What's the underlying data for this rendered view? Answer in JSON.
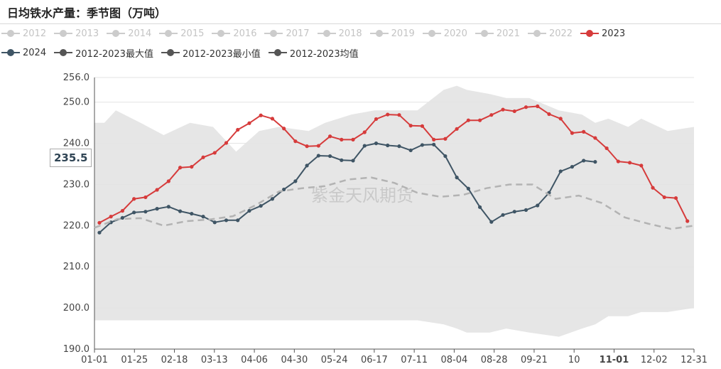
{
  "title": "日均铁水产量：季节图（万吨）",
  "watermark": "紫金天风期货",
  "pointer_label": "235.5",
  "legend": [
    {
      "name": "2012",
      "color": "#cccccc",
      "row": 1
    },
    {
      "name": "2013",
      "color": "#cccccc",
      "row": 1
    },
    {
      "name": "2014",
      "color": "#cccccc",
      "row": 1
    },
    {
      "name": "2015",
      "color": "#cccccc",
      "row": 1
    },
    {
      "name": "2016",
      "color": "#cccccc",
      "row": 1
    },
    {
      "name": "2017",
      "color": "#cccccc",
      "row": 1
    },
    {
      "name": "2018",
      "color": "#cccccc",
      "row": 1
    },
    {
      "name": "2019",
      "color": "#cccccc",
      "row": 1
    },
    {
      "name": "2020",
      "color": "#cccccc",
      "row": 1
    },
    {
      "name": "2021",
      "color": "#cccccc",
      "row": 1
    },
    {
      "name": "2022",
      "color": "#cccccc",
      "row": 1
    },
    {
      "name": "2023",
      "color": "#d63b3b",
      "row": 1
    },
    {
      "name": "2024",
      "color": "#3f5565",
      "row": 2
    },
    {
      "name": "2012-2023最大值",
      "color": "#555555",
      "row": 2
    },
    {
      "name": "2012-2023最小值",
      "color": "#555555",
      "row": 2
    },
    {
      "name": "2012-2023均值",
      "color": "#555555",
      "row": 2
    }
  ],
  "chart_data": {
    "type": "line",
    "xlabel": "",
    "ylabel": "",
    "ylim": [
      190,
      256
    ],
    "yticks": [
      "190.0",
      "200.0",
      "210.0",
      "220.0",
      "230.0",
      "240.0",
      "250.0",
      "256.0"
    ],
    "xtick_labels": [
      "01-01",
      "01-25",
      "02-18",
      "03-13",
      "04-06",
      "04-30",
      "05-24",
      "06-17",
      "07-11",
      "08-04",
      "08-28",
      "09-21",
      "10",
      "11-01",
      "12-02",
      "12-31"
    ],
    "x_range": [
      1,
      365
    ],
    "highlighted_tick": "11-01",
    "band": {
      "name": "2012-2023 range",
      "color": "#e6e6e6",
      "x": [
        1,
        7,
        14,
        29,
        43,
        59,
        73,
        87,
        101,
        113,
        131,
        141,
        157,
        171,
        183,
        197,
        213,
        221,
        227,
        241,
        251,
        265,
        283,
        297,
        305,
        313,
        325,
        333,
        349,
        365
      ],
      "max": [
        245,
        245,
        248,
        245,
        242,
        245,
        244,
        238,
        243,
        244,
        243,
        245,
        247,
        248,
        248,
        248,
        253,
        254,
        253,
        252,
        251,
        251,
        248,
        247,
        245,
        246,
        244,
        246,
        243,
        244
      ],
      "min": [
        197,
        197,
        197,
        197,
        197,
        197,
        197,
        197,
        197,
        197,
        197,
        197,
        197,
        197,
        197,
        197,
        196,
        195,
        194,
        194,
        195,
        194,
        193,
        195,
        196,
        198,
        198,
        199,
        199,
        200
      ]
    },
    "series": [
      {
        "name": "2023",
        "color": "#d63b3b",
        "x": [
          4,
          11,
          18,
          25,
          32,
          39,
          46,
          53,
          60,
          67,
          74,
          81,
          88,
          95,
          102,
          109,
          116,
          123,
          130,
          137,
          144,
          151,
          158,
          165,
          172,
          179,
          186,
          193,
          200,
          207,
          214,
          221,
          228,
          235,
          242,
          249,
          256,
          263,
          270,
          277,
          284,
          291,
          298,
          305,
          312,
          319,
          326,
          333,
          340,
          347,
          354,
          361
        ],
        "values": [
          220.7,
          222.2,
          223.6,
          226.5,
          226.9,
          228.7,
          230.8,
          234.1,
          234.3,
          236.6,
          237.7,
          240.1,
          243.3,
          244.9,
          246.8,
          246.0,
          243.6,
          240.5,
          239.3,
          239.4,
          241.7,
          240.9,
          240.9,
          242.7,
          245.9,
          247.0,
          246.9,
          244.3,
          244.2,
          240.9,
          241.1,
          243.5,
          245.6,
          245.6,
          246.9,
          248.2,
          247.8,
          248.8,
          249.0,
          247.1,
          246.0,
          242.5,
          242.8,
          241.3,
          238.8,
          235.6,
          235.3,
          234.6,
          229.2,
          226.9,
          226.7,
          221.1
        ]
      },
      {
        "name": "2024",
        "color": "#3f5565",
        "x": [
          4,
          11,
          18,
          25,
          32,
          39,
          46,
          53,
          60,
          67,
          74,
          81,
          88,
          95,
          102,
          109,
          116,
          123,
          130,
          137,
          144,
          151,
          158,
          165,
          172,
          179,
          186,
          193,
          200,
          207,
          214,
          221,
          228,
          235,
          242,
          249,
          256,
          263,
          270,
          277,
          284,
          291,
          298,
          305
        ],
        "values": [
          218.3,
          220.8,
          221.9,
          223.2,
          223.4,
          224.1,
          224.6,
          223.5,
          222.9,
          222.2,
          220.8,
          221.3,
          221.3,
          223.6,
          224.8,
          226.5,
          228.8,
          230.8,
          234.6,
          237.0,
          236.9,
          235.9,
          235.8,
          239.4,
          240.0,
          239.5,
          239.3,
          238.3,
          239.6,
          239.7,
          236.9,
          231.7,
          229.0,
          224.5,
          220.9,
          222.6,
          223.4,
          223.8,
          224.9,
          228.0,
          233.2,
          234.3,
          235.8,
          235.5
        ]
      },
      {
        "name": "2012-2023均值",
        "color": "#b3b3b3",
        "dashed": true,
        "x": [
          1,
          15,
          29,
          43,
          57,
          71,
          85,
          99,
          113,
          127,
          141,
          155,
          169,
          183,
          197,
          211,
          225,
          239,
          253,
          267,
          281,
          295,
          309,
          323,
          337,
          351,
          365
        ],
        "values": [
          219.5,
          221.6,
          221.8,
          220.0,
          221.1,
          221.5,
          222.3,
          225.0,
          228.3,
          229.1,
          229.6,
          231.2,
          231.7,
          230.4,
          228.0,
          227.0,
          227.5,
          229.1,
          230.0,
          230.0,
          226.5,
          227.3,
          225.5,
          222.0,
          220.5,
          219.2,
          220.0
        ]
      }
    ]
  }
}
